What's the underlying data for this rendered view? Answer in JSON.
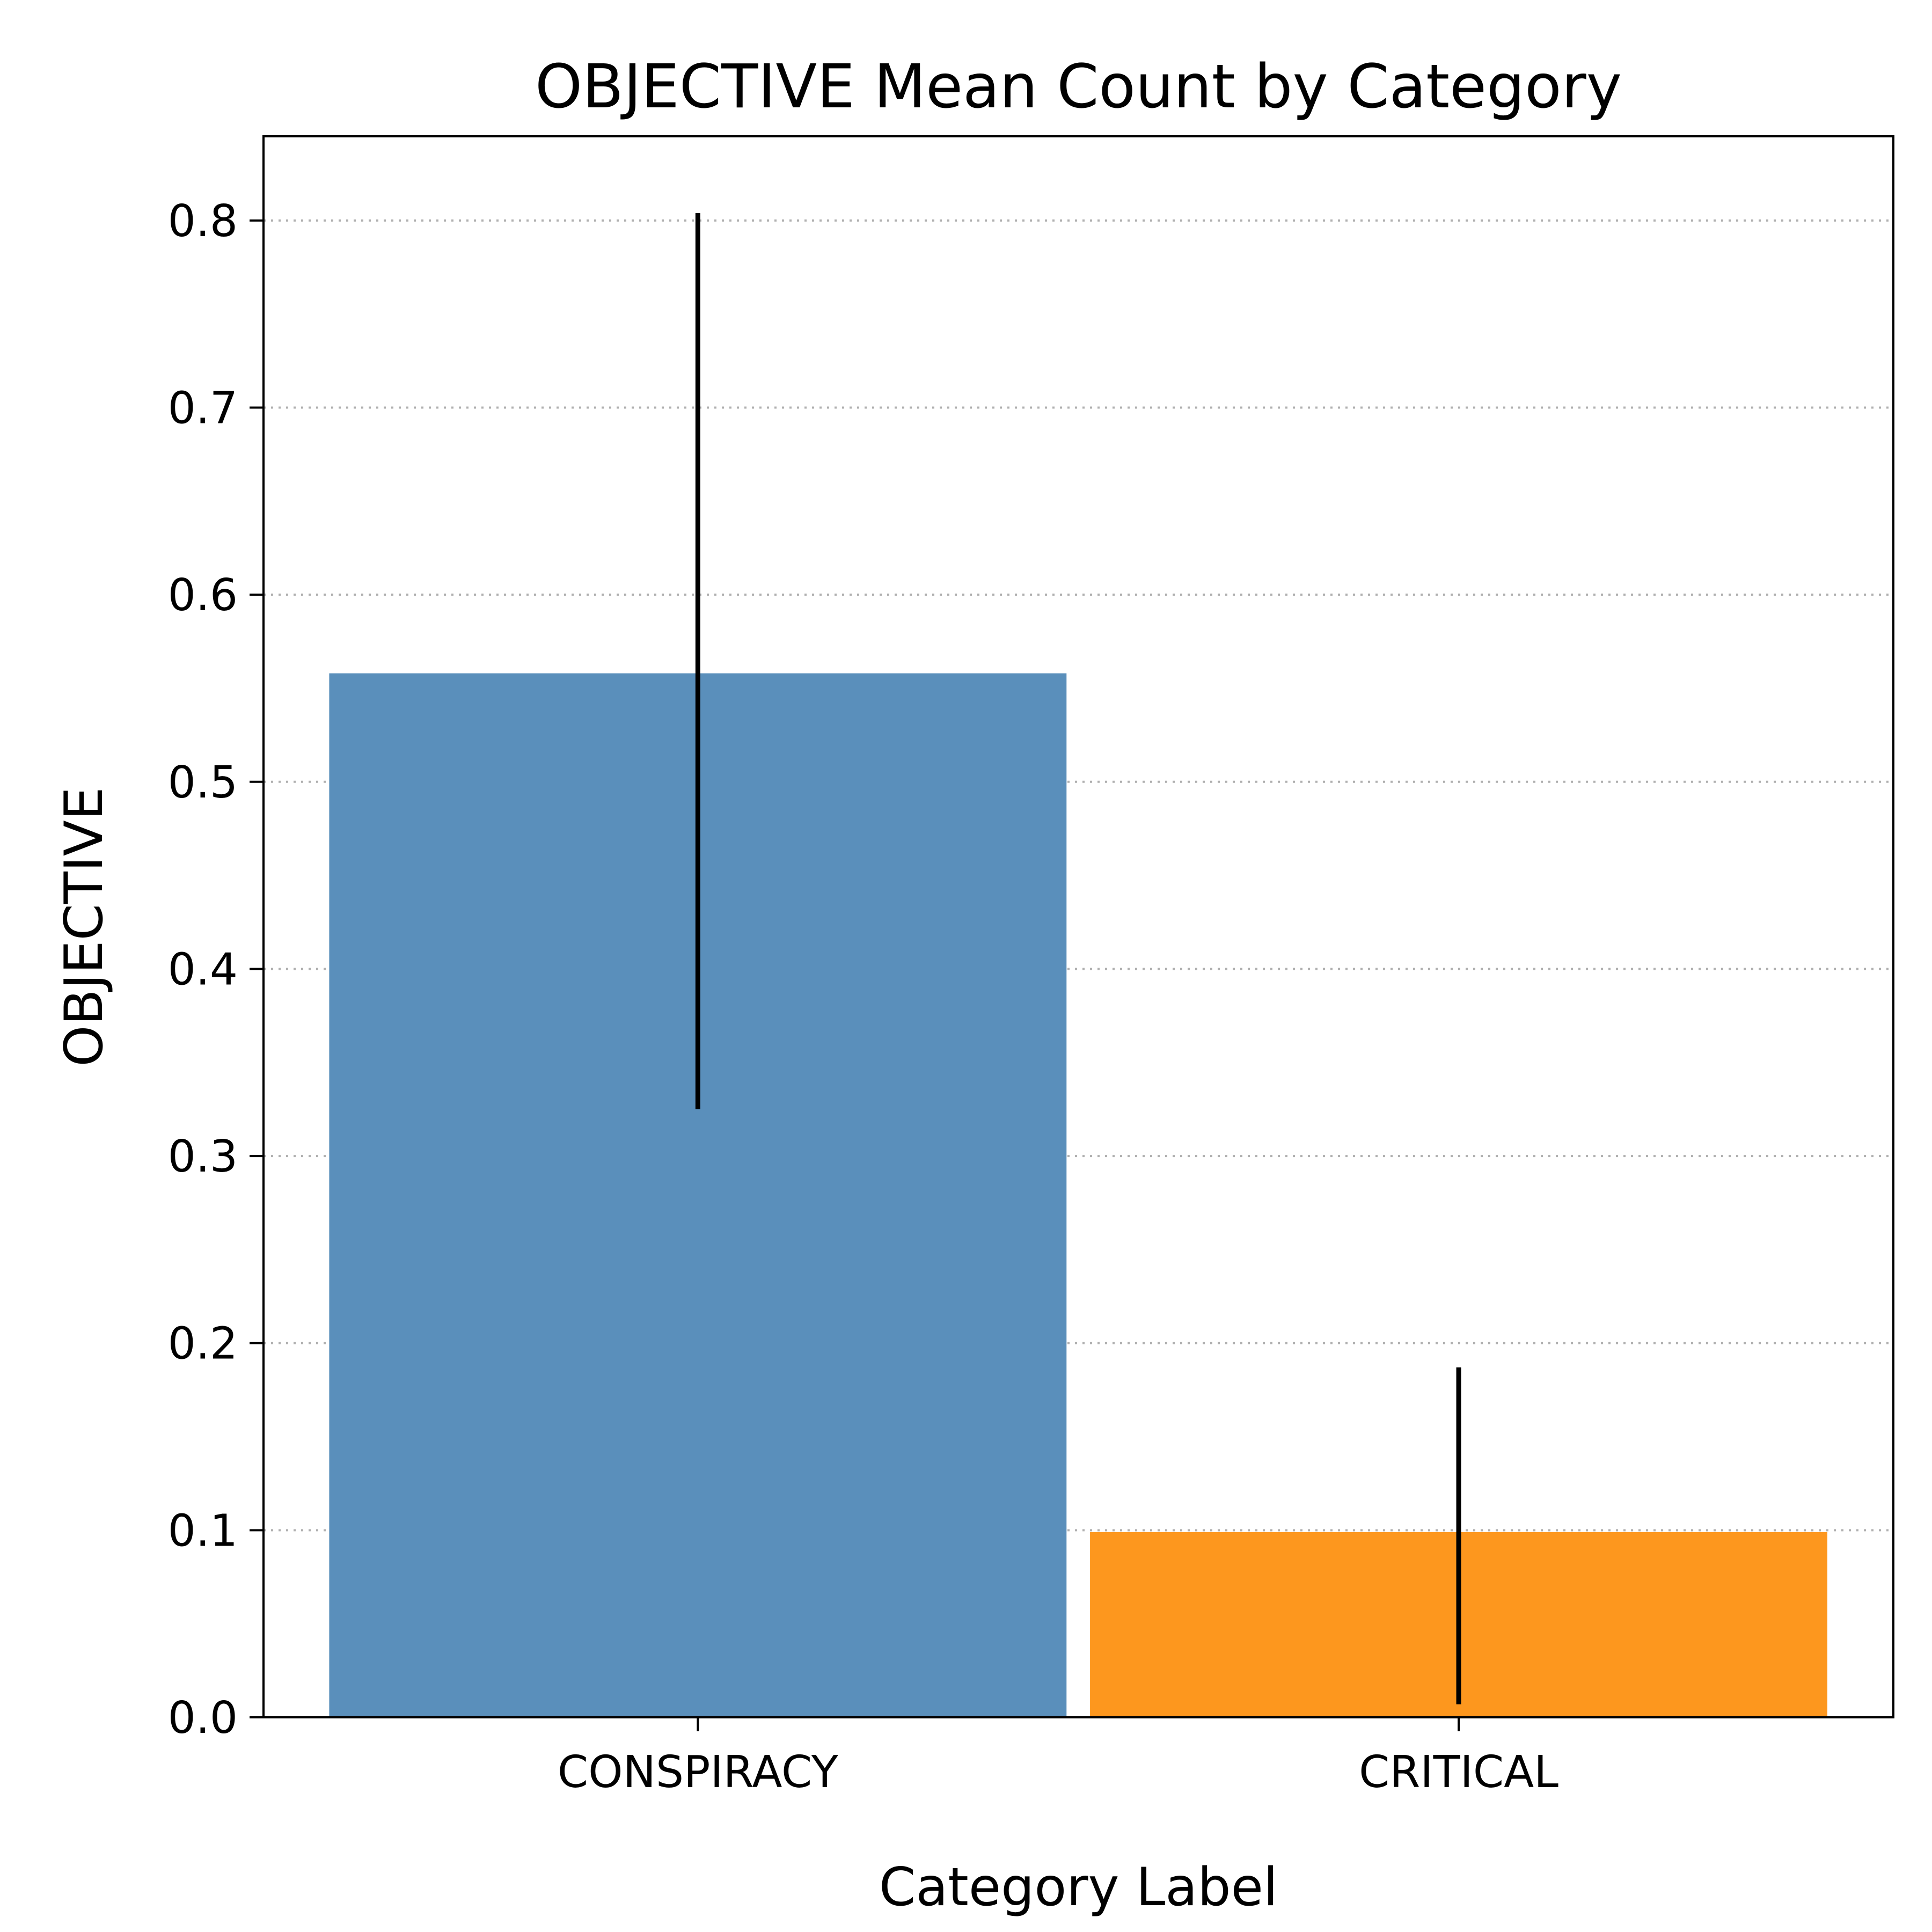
{
  "chart_data": {
    "type": "bar",
    "title": "OBJECTIVE Mean Count by Category",
    "xlabel": "Category Label",
    "ylabel": "OBJECTIVE",
    "categories": [
      "CONSPIRACY",
      "CRITICAL"
    ],
    "values": [
      0.558,
      0.099
    ],
    "error_low": [
      0.325,
      0.007
    ],
    "error_high": [
      0.804,
      0.187
    ],
    "colors": [
      "#5a8fbb",
      "#fd971e"
    ],
    "ylim": [
      0,
      0.845
    ],
    "yticks": [
      0.0,
      0.1,
      0.2,
      0.3,
      0.4,
      0.5,
      0.6,
      0.7,
      0.8
    ],
    "ytick_labels": [
      "0.0",
      "0.1",
      "0.2",
      "0.3",
      "0.4",
      "0.5",
      "0.6",
      "0.7",
      "0.8"
    ],
    "grid": "y-dotted",
    "legend": "none"
  }
}
